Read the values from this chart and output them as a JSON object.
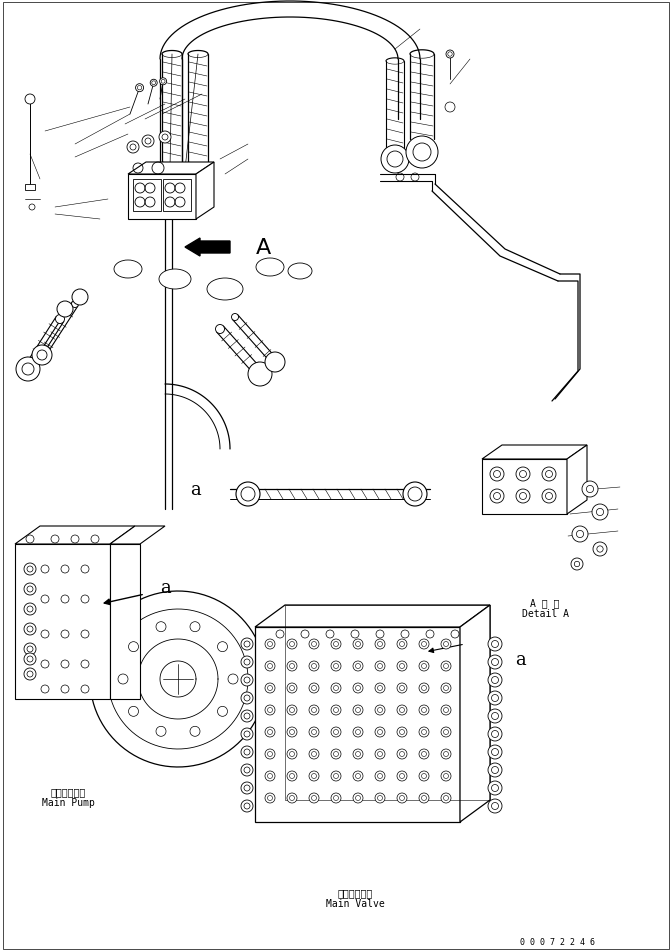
{
  "bg_color": "#ffffff",
  "line_color": "#000000",
  "fig_width": 6.72,
  "fig_height": 9.53,
  "dpi": 100,
  "label_main_pump_ja": "メインポンプ",
  "label_main_pump_en": "Main Pump",
  "label_main_valve_ja": "メインバルブ",
  "label_main_valve_en": "Main Valve",
  "label_detail_ja": "A 詳 細",
  "label_detail_en": "Detail A",
  "label_a_marker": "A",
  "label_a_small": "a",
  "doc_number": "0 0 0 7 2 2 4 6",
  "font_size_label": 7,
  "font_size_small": 6,
  "lw_main": 0.8,
  "lw_thin": 0.5,
  "lw_thick": 1.2
}
